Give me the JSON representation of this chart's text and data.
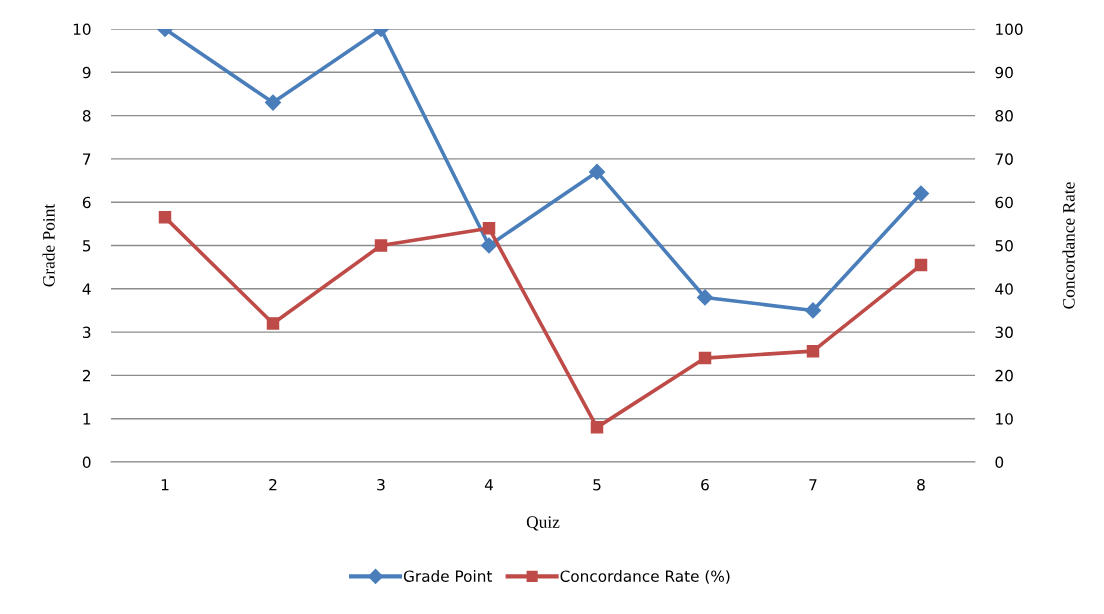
{
  "chart_data": {
    "type": "line",
    "xlabel": "Quiz",
    "ylabel": "Grade Point",
    "y2label": "Concordance Rate",
    "categories": [
      "1",
      "2",
      "3",
      "4",
      "5",
      "6",
      "7",
      "8"
    ],
    "series": [
      {
        "name": "Grade Point",
        "color": "#4a7ebb",
        "marker": "diamond",
        "values": [
          10,
          8.3,
          10,
          5,
          6.7,
          3.8,
          3.5,
          6.2
        ]
      },
      {
        "name": "Concordance Rate (%)",
        "color": "#be4b48",
        "marker": "square",
        "axis": "y2",
        "values": [
          56.5,
          32,
          50,
          54,
          8,
          24,
          25.6,
          45.5
        ]
      }
    ],
    "ylim": [
      0,
      10
    ],
    "yticks": [
      0,
      1,
      2,
      3,
      4,
      5,
      6,
      7,
      8,
      9,
      10
    ],
    "y2lim": [
      0,
      100
    ],
    "y2ticks": [
      0,
      10,
      20,
      30,
      40,
      50,
      60,
      70,
      80,
      90,
      100
    ],
    "grid": "y",
    "legend": "bottom",
    "line_style": "solid"
  }
}
